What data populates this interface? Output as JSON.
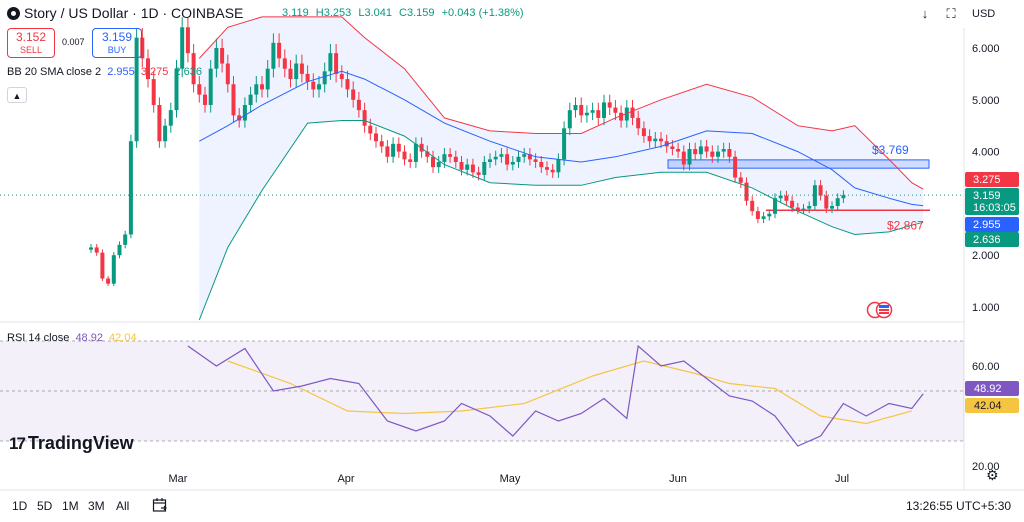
{
  "header": {
    "title": "Story / US Dollar · 1D · COINBASE",
    "ohlc": {
      "open": "3.119",
      "high": "H3.253",
      "low": "L3.041",
      "close": "C3.159",
      "change": "+0.043 (+1.38%)"
    },
    "currency": "USD"
  },
  "trade": {
    "sell_price": "3.152",
    "sell_label": "SELL",
    "spread": "0.007",
    "buy_price": "3.159",
    "buy_label": "BUY"
  },
  "indicators": {
    "bb_label": "BB 20 SMA close 2",
    "bb_basis": "2.955",
    "bb_upper": "3.275",
    "bb_lower": "2.636",
    "rsi_label": "RSI 14 close",
    "rsi_value": "48.92",
    "rsi_ma": "42.04"
  },
  "price_axis": {
    "ticks": [
      "6.000",
      "5.000",
      "4.000",
      "2.000",
      "1.000"
    ],
    "labels": {
      "upper": "3.275",
      "last": "3.159",
      "countdown": "16:03:05",
      "basis": "2.955",
      "lower": "2.636"
    }
  },
  "rsi_axis": {
    "ticks": [
      "60.00",
      "20.00"
    ],
    "labels": {
      "rsi": "48.92",
      "ma": "42.04"
    }
  },
  "annotations": {
    "zone_label": "$3.769",
    "support_label": "$2.867",
    "zone_low": 3.68,
    "zone_high": 3.84,
    "support": 2.867
  },
  "time_axis": [
    "Mar",
    "Apr",
    "May",
    "Jun",
    "Jul"
  ],
  "timeframes": [
    "1D",
    "5D",
    "1M",
    "3M",
    "All"
  ],
  "clock": "13:26:55 UTC+5:30",
  "brand": "TradingView",
  "colors": {
    "up": "#089981",
    "down": "#f23645",
    "basis": "#2962ff",
    "upper": "#f23645",
    "lower": "#089981",
    "band_fill": "#2962ff",
    "rsi": "#7e57c2",
    "rsi_ma": "#f5c542",
    "zone": "#2962ff"
  },
  "chart_data": {
    "type": "line",
    "title": "Story / US Dollar · 1D · COINBASE",
    "x_labels": [
      "Mar",
      "Apr",
      "May",
      "Jun",
      "Jul"
    ],
    "close": [
      2.15,
      2.05,
      1.55,
      1.45,
      2.0,
      2.2,
      2.4,
      4.2,
      6.2,
      5.8,
      5.4,
      4.9,
      4.2,
      4.5,
      4.8,
      5.6,
      6.4,
      5.9,
      5.3,
      5.1,
      4.9,
      5.6,
      6.0,
      5.7,
      5.3,
      4.7,
      4.6,
      4.9,
      5.1,
      5.3,
      5.2,
      5.6,
      6.1,
      5.8,
      5.6,
      5.4,
      5.7,
      5.5,
      5.35,
      5.2,
      5.3,
      5.55,
      5.9,
      5.5,
      5.4,
      5.2,
      5.0,
      4.8,
      4.5,
      4.35,
      4.2,
      4.1,
      3.9,
      4.15,
      4.0,
      3.85,
      3.8,
      4.15,
      4.0,
      3.9,
      3.7,
      3.8,
      3.95,
      3.9,
      3.8,
      3.65,
      3.75,
      3.6,
      3.55,
      3.8,
      3.85,
      3.9,
      3.95,
      3.75,
      3.8,
      3.9,
      3.95,
      3.85,
      3.8,
      3.7,
      3.65,
      3.6,
      3.85,
      4.45,
      4.8,
      4.9,
      4.7,
      4.75,
      4.8,
      4.65,
      4.95,
      4.85,
      4.75,
      4.6,
      4.85,
      4.65,
      4.45,
      4.3,
      4.2,
      4.25,
      4.2,
      4.1,
      4.05,
      4.0,
      3.75,
      4.05,
      3.95,
      4.1,
      4.0,
      3.9,
      4.0,
      4.05,
      3.9,
      3.5,
      3.4,
      3.05,
      2.85,
      2.7,
      2.75,
      2.8,
      3.1,
      3.15,
      3.05,
      2.92,
      2.88,
      2.9,
      2.95,
      3.35,
      3.15,
      2.9,
      2.95,
      3.1,
      3.159
    ],
    "bb_basis": [
      [
        19,
        4.2
      ],
      [
        24,
        4.5
      ],
      [
        30,
        4.9
      ],
      [
        38,
        5.35
      ],
      [
        44,
        5.55
      ],
      [
        48,
        5.4
      ],
      [
        55,
        5.0
      ],
      [
        62,
        4.55
      ],
      [
        70,
        4.2
      ],
      [
        78,
        3.9
      ],
      [
        86,
        3.8
      ],
      [
        92,
        3.9
      ],
      [
        100,
        4.1
      ],
      [
        108,
        4.4
      ],
      [
        116,
        4.35
      ],
      [
        124,
        4.0
      ],
      [
        130,
        3.65
      ],
      [
        134,
        3.3
      ],
      [
        140,
        3.1
      ],
      [
        144,
        2.98
      ],
      [
        146,
        2.955
      ]
    ],
    "bb_upper": [
      [
        19,
        5.8
      ],
      [
        24,
        6.4
      ],
      [
        30,
        6.6
      ],
      [
        38,
        6.6
      ],
      [
        44,
        6.6
      ],
      [
        48,
        6.2
      ],
      [
        55,
        5.6
      ],
      [
        62,
        4.65
      ],
      [
        70,
        4.4
      ],
      [
        78,
        4.35
      ],
      [
        86,
        4.35
      ],
      [
        92,
        4.65
      ],
      [
        100,
        5.0
      ],
      [
        108,
        5.3
      ],
      [
        116,
        5.05
      ],
      [
        124,
        4.5
      ],
      [
        130,
        4.4
      ],
      [
        134,
        4.5
      ],
      [
        140,
        3.85
      ],
      [
        144,
        3.4
      ],
      [
        146,
        3.275
      ]
    ],
    "bb_lower": [
      [
        19,
        0.75
      ],
      [
        24,
        2.15
      ],
      [
        30,
        3.25
      ],
      [
        38,
        4.55
      ],
      [
        44,
        4.6
      ],
      [
        48,
        4.6
      ],
      [
        55,
        4.3
      ],
      [
        62,
        3.75
      ],
      [
        70,
        3.4
      ],
      [
        78,
        3.35
      ],
      [
        86,
        3.35
      ],
      [
        92,
        3.5
      ],
      [
        100,
        3.6
      ],
      [
        108,
        3.6
      ],
      [
        116,
        3.3
      ],
      [
        124,
        2.85
      ],
      [
        130,
        2.55
      ],
      [
        134,
        2.4
      ],
      [
        140,
        2.45
      ],
      [
        144,
        2.58
      ],
      [
        146,
        2.636
      ]
    ],
    "rsi": [
      [
        17,
        68
      ],
      [
        22,
        60
      ],
      [
        27,
        67
      ],
      [
        32,
        50
      ],
      [
        37,
        52
      ],
      [
        42,
        55
      ],
      [
        47,
        53
      ],
      [
        52,
        38
      ],
      [
        57,
        34
      ],
      [
        62,
        38
      ],
      [
        65,
        45
      ],
      [
        70,
        40
      ],
      [
        74,
        32
      ],
      [
        78,
        42
      ],
      [
        82,
        38
      ],
      [
        86,
        41
      ],
      [
        90,
        47
      ],
      [
        94,
        39
      ],
      [
        96,
        68
      ],
      [
        100,
        60
      ],
      [
        104,
        62
      ],
      [
        108,
        55
      ],
      [
        112,
        48
      ],
      [
        116,
        46
      ],
      [
        120,
        40
      ],
      [
        124,
        28
      ],
      [
        128,
        32
      ],
      [
        132,
        45
      ],
      [
        136,
        40
      ],
      [
        140,
        45
      ],
      [
        144,
        43
      ],
      [
        146,
        48.92
      ]
    ],
    "rsi_ma": [
      [
        24,
        62
      ],
      [
        35,
        53
      ],
      [
        45,
        42
      ],
      [
        55,
        41
      ],
      [
        65,
        42
      ],
      [
        76,
        45
      ],
      [
        88,
        56
      ],
      [
        97,
        62
      ],
      [
        106,
        57
      ],
      [
        112,
        53
      ],
      [
        120,
        51
      ],
      [
        128,
        40
      ],
      [
        136,
        37
      ],
      [
        144,
        42.04
      ]
    ],
    "ylim": [
      0.5,
      6.6
    ],
    "rsi_ylim": [
      20,
      80
    ],
    "rsi_bands": [
      30,
      70
    ]
  }
}
